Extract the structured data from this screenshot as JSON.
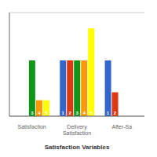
{
  "chart_data": {
    "type": "bar",
    "xlabel": "Satisfaction Variables",
    "categories": [
      "Satisfaction",
      "Delivery Satisfaction",
      "After-Sa"
    ],
    "series": [
      {
        "name": "1",
        "color": "#3366cc",
        "values": [
          0,
          7,
          7
        ]
      },
      {
        "name": "2",
        "color": "#dc3912",
        "values": [
          0,
          7,
          3
        ]
      },
      {
        "name": "3",
        "color": "#109618",
        "values": [
          7,
          7,
          0
        ]
      },
      {
        "name": "4",
        "color": "#ff9900",
        "values": [
          2,
          7,
          0
        ]
      },
      {
        "name": "5",
        "color": "#ffff00",
        "values": [
          2,
          11,
          0
        ]
      }
    ],
    "ylim": [
      0,
      13
    ],
    "yticks": [
      0,
      3,
      6,
      9,
      12
    ],
    "grid": true,
    "tick_labels": "x"
  }
}
